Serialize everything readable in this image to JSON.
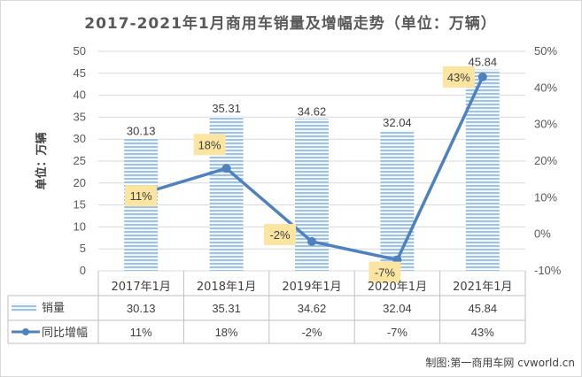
{
  "chart_data": {
    "type": "bar",
    "title": "2017-2021年1月商用车销量及增幅走势（单位：万辆）",
    "ylabel": "单位：万辆",
    "categories": [
      "2017年1月",
      "2018年1月",
      "2019年1月",
      "2020年1月",
      "2021年1月"
    ],
    "series": [
      {
        "name": "销量",
        "type": "bar",
        "axis": "left",
        "values": [
          30.13,
          35.31,
          34.62,
          32.04,
          45.84
        ],
        "labels": [
          "30.13",
          "35.31",
          "34.62",
          "32.04",
          "45.84"
        ]
      },
      {
        "name": "同比增幅",
        "type": "line",
        "axis": "right",
        "values": [
          11,
          18,
          -2,
          -7,
          43
        ],
        "labels": [
          "11%",
          "18%",
          "-2%",
          "-7%",
          "43%"
        ]
      }
    ],
    "ylim_left": [
      0,
      50
    ],
    "yticks_left": [
      "0",
      "5",
      "10",
      "15",
      "20",
      "25",
      "30",
      "35",
      "40",
      "45",
      "50"
    ],
    "ylim_right": [
      -10,
      50
    ],
    "yticks_right": [
      "-10%",
      "0%",
      "10%",
      "20%",
      "30%",
      "40%",
      "50%"
    ],
    "grid": true,
    "legend": "data-table",
    "colors": {
      "bar": "#9dc3e6",
      "bar_stripe": "#ffffff",
      "line": "#4f81bd",
      "label_box": "#fbe5a0",
      "grid": "#d9d9d9",
      "text": "#404040"
    }
  },
  "credit": "制图:第一商用车网 cvworld.cn"
}
